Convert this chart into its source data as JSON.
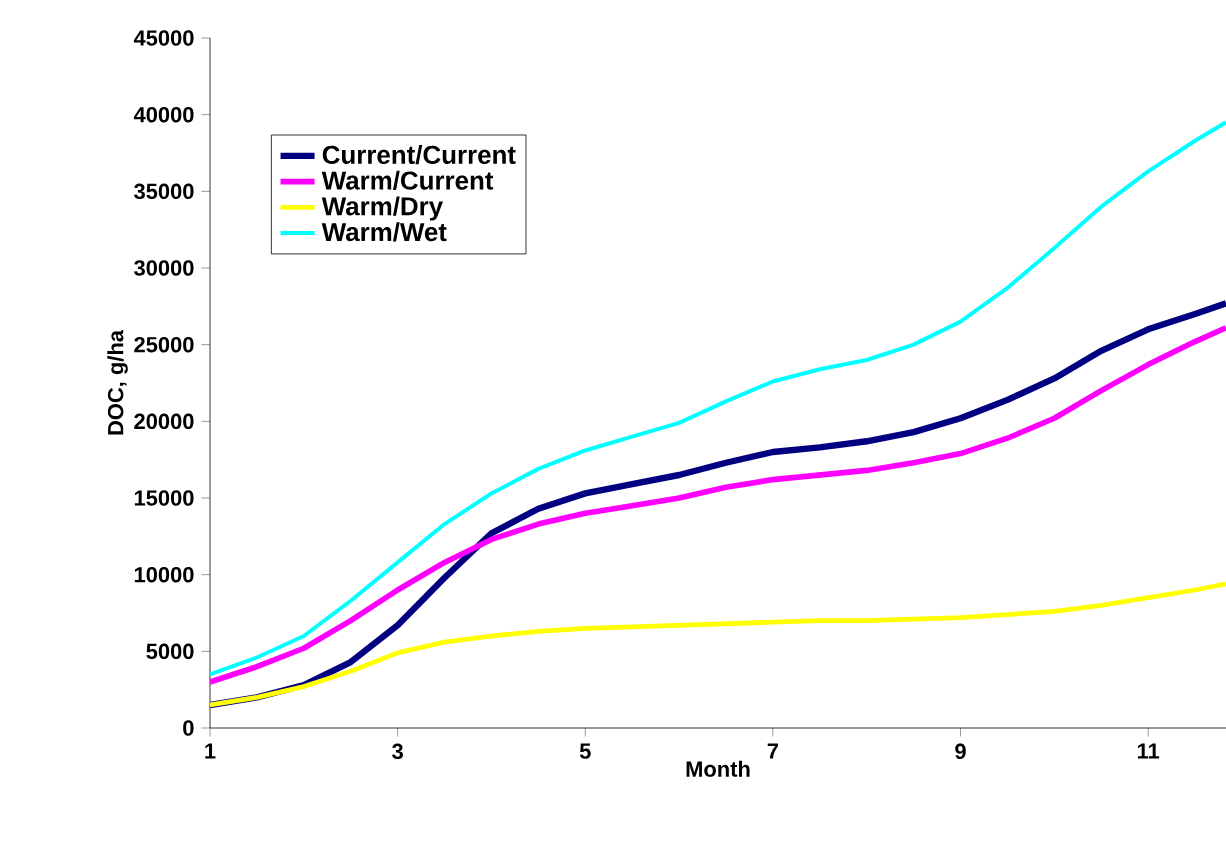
{
  "chart_data": {
    "type": "line",
    "xlabel": "Month",
    "ylabel": "DOC, g/ha",
    "xlim": [
      1,
      11.83
    ],
    "xticks": [
      1,
      3,
      5,
      7,
      9,
      11
    ],
    "ylim": [
      0,
      45000
    ],
    "yticks": [
      0,
      5000,
      10000,
      15000,
      20000,
      25000,
      30000,
      35000,
      40000,
      45000
    ],
    "grid": false,
    "legend": "top left",
    "marker": "none",
    "line_style": "solid",
    "x": [
      1,
      1.5,
      2,
      2.5,
      3,
      3.5,
      4,
      4.5,
      5,
      5.5,
      6,
      6.5,
      7,
      7.5,
      8,
      8.5,
      9,
      9.5,
      10,
      10.5,
      11,
      11.5,
      11.83
    ],
    "series": [
      {
        "name": "Current/Current",
        "color": "#000080",
        "values": [
          1500,
          2000,
          2800,
          4300,
          6700,
          9800,
          12700,
          14300,
          15300,
          15900,
          16500,
          17300,
          18000,
          18300,
          18700,
          19300,
          20200,
          21400,
          22800,
          24600,
          26000,
          27000,
          27700
        ]
      },
      {
        "name": "Warm/Current",
        "color": "#ff00ff",
        "values": [
          3000,
          4000,
          5200,
          7000,
          9000,
          10800,
          12300,
          13300,
          14000,
          14500,
          15000,
          15700,
          16200,
          16500,
          16800,
          17300,
          17900,
          18900,
          20200,
          22000,
          23700,
          25200,
          26100
        ]
      },
      {
        "name": "Warm/Dry",
        "color": "#ffff00",
        "values": [
          1500,
          2000,
          2700,
          3700,
          4900,
          5600,
          6000,
          6300,
          6500,
          6600,
          6700,
          6800,
          6900,
          7000,
          7000,
          7100,
          7200,
          7400,
          7600,
          8000,
          8500,
          9000,
          9400
        ]
      },
      {
        "name": "Warm/Wet",
        "color": "#00ffff",
        "values": [
          3500,
          4600,
          6000,
          8300,
          10800,
          13300,
          15300,
          16900,
          18100,
          19000,
          19900,
          21300,
          22600,
          23400,
          24000,
          25000,
          26500,
          28700,
          31300,
          34000,
          36300,
          38300,
          39500
        ]
      }
    ]
  }
}
